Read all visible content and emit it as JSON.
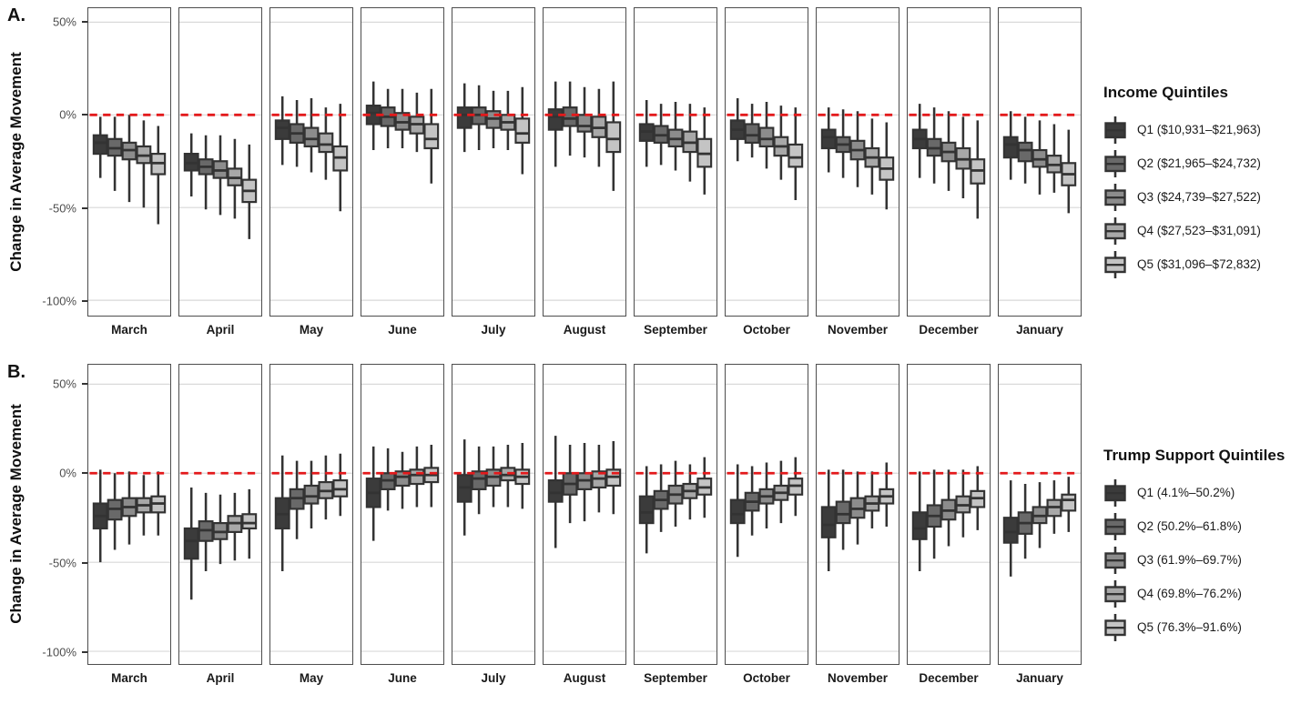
{
  "figure": {
    "background": "#ffffff"
  },
  "colors": {
    "box_stroke": "#333333",
    "grid_line": "#d9d9d9",
    "facet_border": "#4d4d4d",
    "zero_line": "#e31a1c",
    "quintile_fills": [
      "#3b3b3b",
      "#696969",
      "#8c8c8c",
      "#a8a8a8",
      "#c4c4c4"
    ]
  },
  "chart_data": [
    {
      "type": "boxplot",
      "panel_label": "A.",
      "ylabel": "Change in Average Movement",
      "ylim": [
        -112,
        58
      ],
      "grid": "major-horizontal",
      "yticks": [
        {
          "value": 50,
          "label": "50%"
        },
        {
          "value": 0,
          "label": "0%"
        },
        {
          "value": -50,
          "label": "-50%"
        },
        {
          "value": -100,
          "label": "-100%"
        }
      ],
      "zero_line": {
        "value": 0,
        "color": "#e31a1c",
        "style": "dashed"
      },
      "months": [
        "March",
        "April",
        "May",
        "June",
        "July",
        "August",
        "September",
        "October",
        "November",
        "December",
        "January"
      ],
      "legend": {
        "title": "Income Quintiles",
        "position": "right",
        "entries": [
          {
            "label": "Q1 ($10,931–$21,963)",
            "fill": "#3b3b3b"
          },
          {
            "label": "Q2 ($21,965–$24,732)",
            "fill": "#696969"
          },
          {
            "label": "Q3 ($24,739–$27,522)",
            "fill": "#8c8c8c"
          },
          {
            "label": "Q4 ($27,523–$31,091)",
            "fill": "#a8a8a8"
          },
          {
            "label": "Q5 ($31,096–$72,832)",
            "fill": "#c4c4c4"
          }
        ]
      },
      "box_value_order": [
        "whisker_low",
        "q1",
        "median",
        "q3",
        "whisker_high"
      ],
      "values": [
        [
          [
            -34,
            -21,
            -15,
            -11,
            -1
          ],
          [
            -41,
            -22,
            -18,
            -13,
            -1
          ],
          [
            -47,
            -24,
            -19,
            -15,
            0
          ],
          [
            -50,
            -26,
            -22,
            -17,
            -3
          ],
          [
            -59,
            -32,
            -26,
            -21,
            -6
          ]
        ],
        [
          [
            -44,
            -30,
            -26,
            -21,
            -10
          ],
          [
            -51,
            -32,
            -28,
            -24,
            -11
          ],
          [
            -54,
            -34,
            -30,
            -25,
            -11
          ],
          [
            -56,
            -38,
            -34,
            -29,
            -13
          ],
          [
            -67,
            -47,
            -41,
            -35,
            -16
          ]
        ],
        [
          [
            -27,
            -13,
            -7,
            -3,
            10
          ],
          [
            -28,
            -15,
            -10,
            -5,
            8
          ],
          [
            -31,
            -17,
            -13,
            -7,
            9
          ],
          [
            -35,
            -20,
            -16,
            -10,
            4
          ],
          [
            -52,
            -30,
            -23,
            -17,
            6
          ]
        ],
        [
          [
            -19,
            -5,
            1,
            5,
            18
          ],
          [
            -18,
            -6,
            -1,
            4,
            14
          ],
          [
            -18,
            -8,
            -4,
            1,
            14
          ],
          [
            -20,
            -10,
            -5,
            -1,
            12
          ],
          [
            -37,
            -18,
            -13,
            -5,
            14
          ]
        ],
        [
          [
            -20,
            -7,
            0,
            4,
            17
          ],
          [
            -19,
            -5,
            0,
            4,
            16
          ],
          [
            -18,
            -7,
            -2,
            2,
            13
          ],
          [
            -19,
            -8,
            -4,
            0,
            13
          ],
          [
            -32,
            -15,
            -10,
            -2,
            15
          ]
        ],
        [
          [
            -28,
            -8,
            -1,
            3,
            18
          ],
          [
            -22,
            -6,
            -2,
            4,
            18
          ],
          [
            -23,
            -9,
            -6,
            0,
            15
          ],
          [
            -28,
            -12,
            -7,
            -1,
            14
          ],
          [
            -41,
            -20,
            -13,
            -4,
            18
          ]
        ],
        [
          [
            -28,
            -14,
            -9,
            -5,
            8
          ],
          [
            -27,
            -15,
            -11,
            -6,
            6
          ],
          [
            -30,
            -17,
            -13,
            -8,
            7
          ],
          [
            -36,
            -20,
            -15,
            -9,
            6
          ],
          [
            -43,
            -28,
            -21,
            -13,
            4
          ]
        ],
        [
          [
            -25,
            -13,
            -8,
            -3,
            9
          ],
          [
            -23,
            -15,
            -11,
            -5,
            6
          ],
          [
            -29,
            -17,
            -13,
            -7,
            7
          ],
          [
            -35,
            -22,
            -17,
            -12,
            5
          ],
          [
            -46,
            -28,
            -23,
            -16,
            4
          ]
        ],
        [
          [
            -31,
            -18,
            -12,
            -8,
            4
          ],
          [
            -34,
            -20,
            -16,
            -12,
            3
          ],
          [
            -39,
            -24,
            -19,
            -14,
            2
          ],
          [
            -43,
            -28,
            -23,
            -18,
            -2
          ],
          [
            -51,
            -35,
            -29,
            -23,
            -4
          ]
        ],
        [
          [
            -34,
            -18,
            -13,
            -8,
            6
          ],
          [
            -37,
            -22,
            -18,
            -13,
            4
          ],
          [
            -41,
            -25,
            -20,
            -15,
            2
          ],
          [
            -45,
            -29,
            -24,
            -18,
            -1
          ],
          [
            -56,
            -37,
            -30,
            -24,
            -3
          ]
        ],
        [
          [
            -35,
            -23,
            -16,
            -12,
            2
          ],
          [
            -37,
            -25,
            -19,
            -15,
            -1
          ],
          [
            -43,
            -28,
            -24,
            -19,
            -3
          ],
          [
            -42,
            -31,
            -27,
            -22,
            -5
          ],
          [
            -53,
            -38,
            -32,
            -26,
            -8
          ]
        ]
      ]
    },
    {
      "type": "boxplot",
      "panel_label": "B.",
      "ylabel": "Change in Average Movement",
      "ylim": [
        -107,
        61
      ],
      "grid": "major-horizontal",
      "yticks": [
        {
          "value": 50,
          "label": "50%"
        },
        {
          "value": 0,
          "label": "0%"
        },
        {
          "value": -50,
          "label": "-50%"
        },
        {
          "value": -100,
          "label": "-100%"
        }
      ],
      "zero_line": {
        "value": 0,
        "color": "#e31a1c",
        "style": "dashed"
      },
      "months": [
        "March",
        "April",
        "May",
        "June",
        "July",
        "August",
        "September",
        "October",
        "November",
        "December",
        "January"
      ],
      "legend": {
        "title": "Trump Support Quintiles",
        "position": "right",
        "entries": [
          {
            "label": "Q1 (4.1%–50.2%)",
            "fill": "#3b3b3b"
          },
          {
            "label": "Q2 (50.2%–61.8%)",
            "fill": "#696969"
          },
          {
            "label": "Q3 (61.9%–69.7%)",
            "fill": "#8c8c8c"
          },
          {
            "label": "Q4 (69.8%–76.2%)",
            "fill": "#a8a8a8"
          },
          {
            "label": "Q5 (76.3%–91.6%)",
            "fill": "#c4c4c4"
          }
        ]
      },
      "box_value_order": [
        "whisker_low",
        "q1",
        "median",
        "q3",
        "whisker_high"
      ],
      "values": [
        [
          [
            -50,
            -31,
            -24,
            -17,
            2
          ],
          [
            -43,
            -26,
            -20,
            -15,
            0
          ],
          [
            -40,
            -24,
            -19,
            -14,
            1
          ],
          [
            -35,
            -22,
            -18,
            -14,
            -1
          ],
          [
            -35,
            -22,
            -17,
            -13,
            1
          ]
        ],
        [
          [
            -71,
            -48,
            -38,
            -31,
            -8
          ],
          [
            -55,
            -38,
            -32,
            -27,
            -11
          ],
          [
            -51,
            -37,
            -33,
            -28,
            -12
          ],
          [
            -49,
            -33,
            -28,
            -24,
            -11
          ],
          [
            -48,
            -31,
            -28,
            -23,
            -9
          ]
        ],
        [
          [
            -55,
            -31,
            -23,
            -14,
            10
          ],
          [
            -37,
            -20,
            -14,
            -9,
            7
          ],
          [
            -31,
            -17,
            -13,
            -7,
            7
          ],
          [
            -26,
            -14,
            -10,
            -5,
            10
          ],
          [
            -24,
            -13,
            -9,
            -4,
            11
          ]
        ],
        [
          [
            -38,
            -19,
            -11,
            -3,
            15
          ],
          [
            -21,
            -9,
            -4,
            0,
            14
          ],
          [
            -20,
            -7,
            -2,
            1,
            12
          ],
          [
            -19,
            -6,
            -1,
            2,
            15
          ],
          [
            -19,
            -5,
            -1,
            3,
            16
          ]
        ],
        [
          [
            -35,
            -16,
            -8,
            -1,
            19
          ],
          [
            -23,
            -9,
            -3,
            1,
            15
          ],
          [
            -19,
            -7,
            -2,
            2,
            15
          ],
          [
            -19,
            -4,
            -1,
            3,
            16
          ],
          [
            -20,
            -6,
            -2,
            2,
            17
          ]
        ],
        [
          [
            -42,
            -16,
            -11,
            -4,
            21
          ],
          [
            -28,
            -12,
            -6,
            0,
            16
          ],
          [
            -27,
            -9,
            -4,
            0,
            17
          ],
          [
            -22,
            -8,
            -3,
            1,
            16
          ],
          [
            -23,
            -7,
            -2,
            2,
            18
          ]
        ],
        [
          [
            -45,
            -28,
            -22,
            -13,
            4
          ],
          [
            -33,
            -20,
            -15,
            -10,
            5
          ],
          [
            -30,
            -17,
            -12,
            -7,
            7
          ],
          [
            -26,
            -14,
            -10,
            -6,
            5
          ],
          [
            -25,
            -12,
            -8,
            -3,
            9
          ]
        ],
        [
          [
            -47,
            -28,
            -23,
            -15,
            5
          ],
          [
            -35,
            -21,
            -16,
            -11,
            4
          ],
          [
            -31,
            -17,
            -13,
            -9,
            6
          ],
          [
            -28,
            -15,
            -11,
            -7,
            7
          ],
          [
            -24,
            -12,
            -7,
            -3,
            9
          ]
        ],
        [
          [
            -55,
            -36,
            -29,
            -19,
            2
          ],
          [
            -43,
            -28,
            -23,
            -16,
            2
          ],
          [
            -40,
            -25,
            -20,
            -14,
            1
          ],
          [
            -31,
            -21,
            -17,
            -13,
            1
          ],
          [
            -30,
            -17,
            -13,
            -9,
            6
          ]
        ],
        [
          [
            -55,
            -37,
            -31,
            -22,
            1
          ],
          [
            -48,
            -30,
            -24,
            -18,
            2
          ],
          [
            -41,
            -26,
            -21,
            -15,
            2
          ],
          [
            -36,
            -22,
            -18,
            -13,
            2
          ],
          [
            -32,
            -19,
            -14,
            -10,
            4
          ]
        ],
        [
          [
            -58,
            -39,
            -33,
            -25,
            -4
          ],
          [
            -48,
            -34,
            -28,
            -22,
            -6
          ],
          [
            -42,
            -28,
            -24,
            -19,
            -5
          ],
          [
            -34,
            -24,
            -19,
            -15,
            -4
          ],
          [
            -33,
            -21,
            -15,
            -12,
            -2
          ]
        ]
      ]
    }
  ]
}
